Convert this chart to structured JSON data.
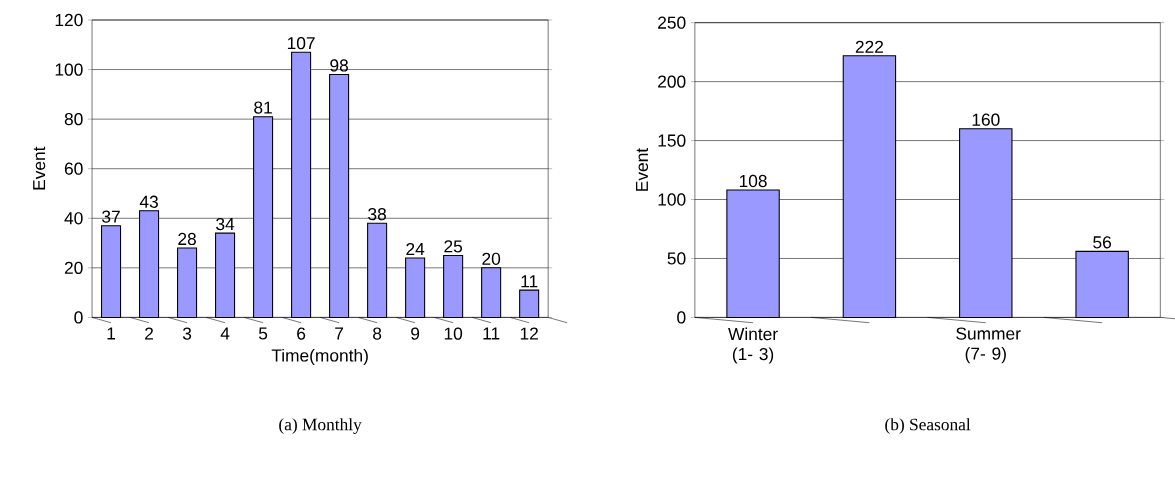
{
  "chart_data": [
    {
      "type": "bar",
      "title": "(a) Monthly",
      "xlabel": "Time(month)",
      "ylabel": "Event",
      "categories": [
        "1",
        "2",
        "3",
        "4",
        "5",
        "6",
        "7",
        "8",
        "9",
        "10",
        "11",
        "12"
      ],
      "values": [
        37,
        43,
        28,
        34,
        81,
        107,
        98,
        38,
        24,
        25,
        20,
        11
      ],
      "color": "#9999ff",
      "ylim": [
        0,
        120
      ],
      "yticks": [
        0,
        20,
        40,
        60,
        80,
        100,
        120
      ],
      "grid": "y",
      "data_labels": true
    },
    {
      "type": "bar",
      "title": "(b) Seasonal",
      "ylabel": "Event",
      "categories": [
        "Winter (1- 3)",
        null,
        "Summer (7- 9)",
        null
      ],
      "values": [
        108,
        222,
        160,
        56
      ],
      "color": "#9999ff",
      "ylim": [
        0,
        250
      ],
      "yticks": [
        0,
        50,
        100,
        150,
        200,
        250
      ],
      "grid": "y",
      "data_labels": true
    }
  ]
}
